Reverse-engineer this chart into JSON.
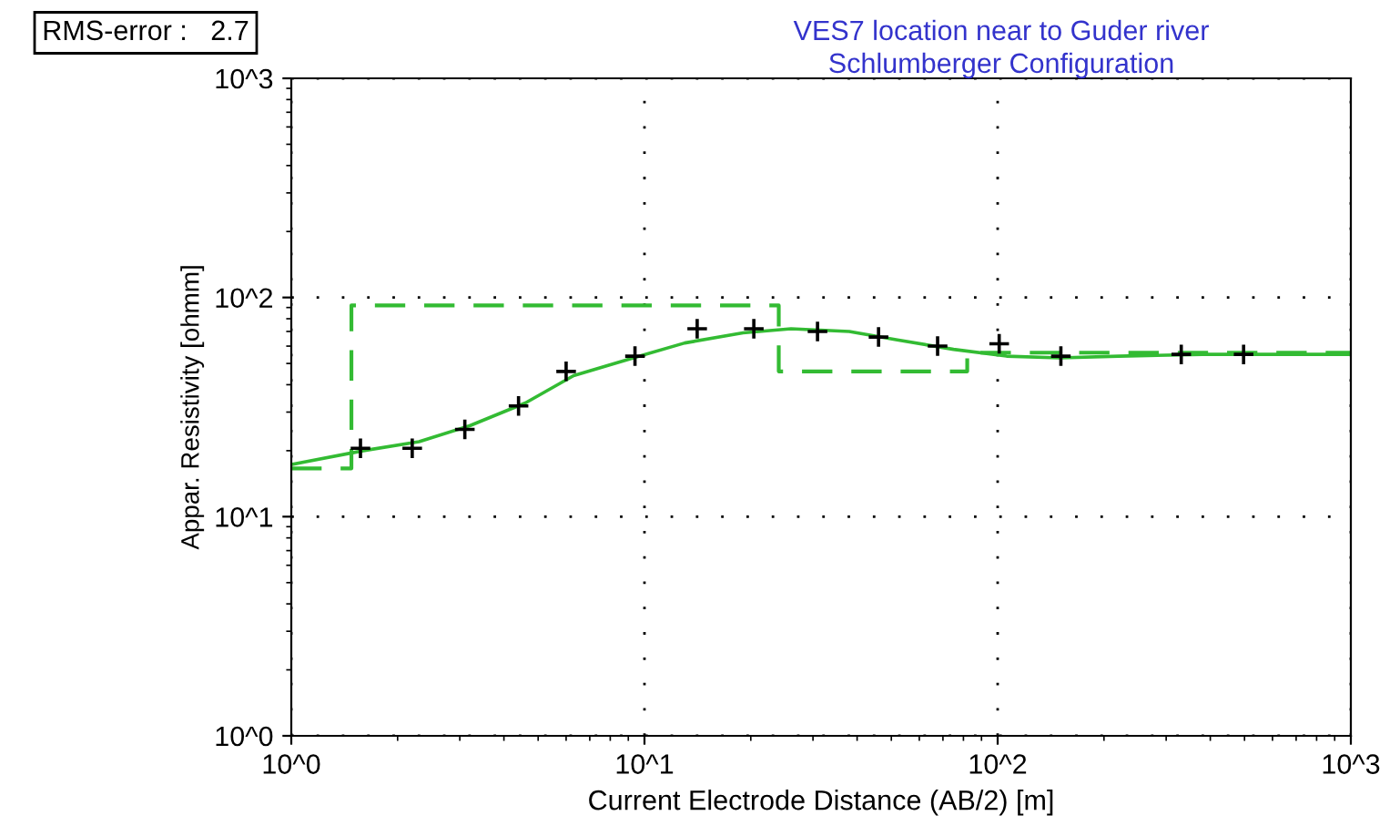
{
  "chart_data": {
    "type": "line",
    "title": "VES7 location near to Guder river",
    "subtitle": "Schlumberger Configuration",
    "xlabel": "Current Electrode Distance (AB/2) [m]",
    "ylabel": "Appar. Resistivity [ohmm]",
    "annotations": [
      "RMS-error :   2.7"
    ],
    "log": "xy",
    "grid": true,
    "legend": false,
    "xlim": [
      1,
      1000
    ],
    "xticks": [
      {
        "value": 1,
        "label": "10^0"
      },
      {
        "value": 10,
        "label": "10^1"
      },
      {
        "value": 100,
        "label": "10^2"
      },
      {
        "value": 1000,
        "label": "10^3"
      }
    ],
    "ylim": [
      1,
      1000
    ],
    "yticks": [
      {
        "value": 1,
        "label": "10^0"
      },
      {
        "value": 10,
        "label": "10^1"
      },
      {
        "value": 100,
        "label": "10^2"
      },
      {
        "value": 1000,
        "label": "10^3"
      }
    ],
    "series": [
      {
        "type": "scatter",
        "marker": "cross",
        "color": "#000000",
        "x": [
          1.57,
          2.2,
          3.1,
          4.4,
          6.0,
          9.4,
          14.1,
          20.4,
          30.9,
          46,
          67.6,
          101,
          151,
          331,
          497
        ],
        "values": [
          20.5,
          20.5,
          25,
          32,
          46,
          54,
          72,
          72,
          70,
          66,
          60,
          61.5,
          54,
          55,
          55
        ]
      },
      {
        "line_style": "solid",
        "color": "#33bb33",
        "x": [
          1,
          1.6,
          2.3,
          3.2,
          4.6,
          6.3,
          9.3,
          13,
          19,
          26,
          38,
          52,
          75,
          106,
          150,
          220,
          380,
          600,
          1000
        ],
        "values": [
          17.3,
          20,
          22,
          26,
          33,
          44,
          53,
          62,
          69,
          72,
          70,
          64,
          58,
          54,
          53,
          54,
          55,
          55,
          55
        ]
      },
      {
        "type": "step",
        "line_style": "dashed",
        "color": "#33bb33",
        "x": [
          1,
          1.48,
          24,
          82,
          1000
        ],
        "values": [
          16.6,
          92,
          46,
          56,
          56
        ]
      }
    ]
  }
}
